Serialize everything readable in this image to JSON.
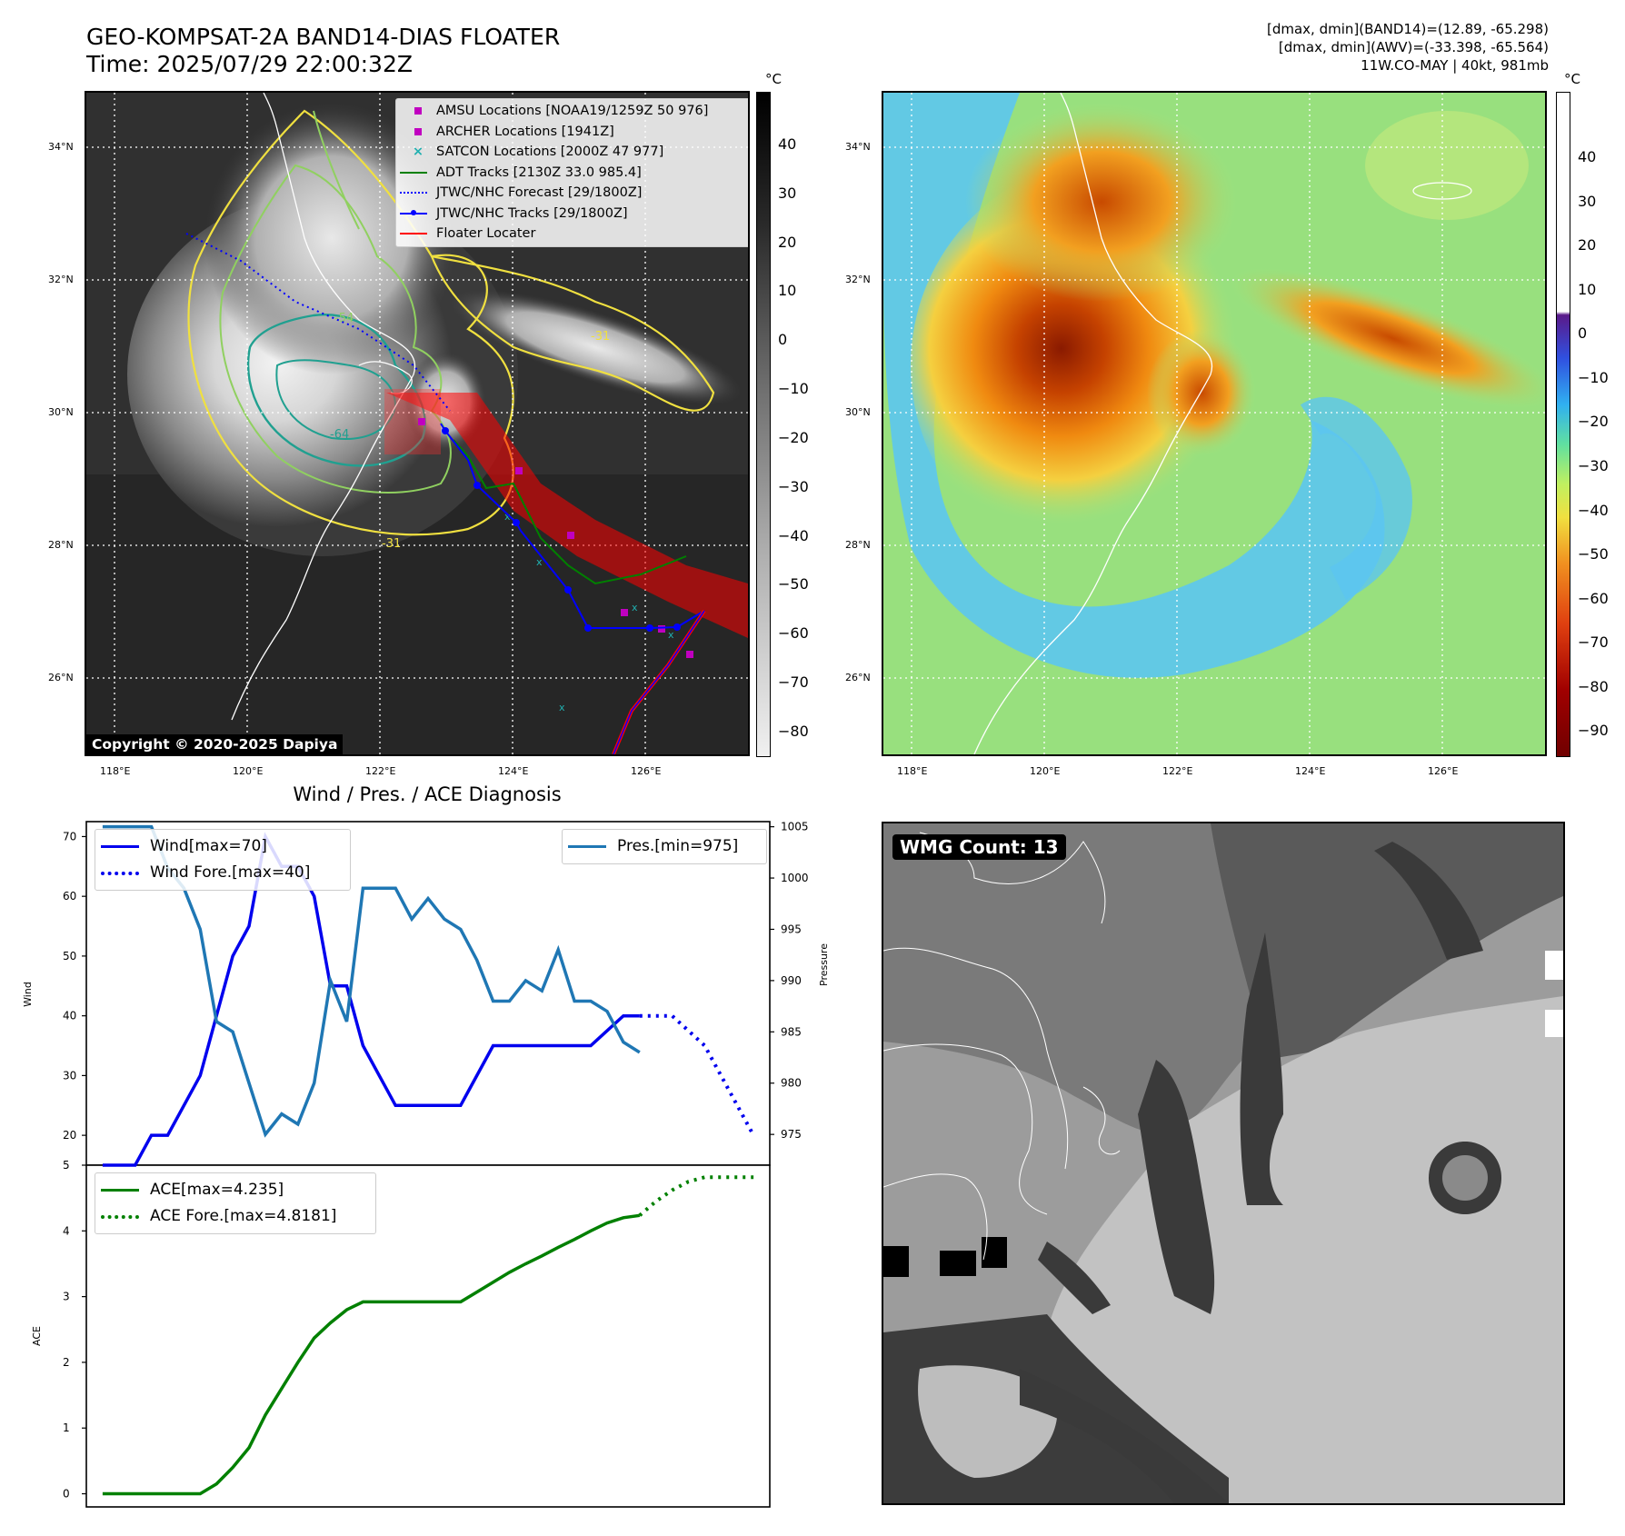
{
  "header": {
    "title_line1": "GEO-KOMPSAT-2A BAND14-DIAS FLOATER",
    "title_line2": "Time: 2025/07/29 22:00:32Z",
    "stats_line1": "[dmax, dmin](BAND14)=(12.89, -65.298)",
    "stats_line2": "[dmax, dmin](AWV)=(-33.398, -65.564)",
    "stats_line3": "11W.CO-MAY | 40kt, 981mb"
  },
  "ir_panel": {
    "copyright": "Copyright © 2020-2025 Dapiya",
    "lat_labels": [
      "34°N",
      "32°N",
      "30°N",
      "28°N",
      "26°N"
    ],
    "lon_labels": [
      "118°E",
      "120°E",
      "122°E",
      "124°E",
      "126°E"
    ],
    "contour_labels": [
      "-54",
      "-31",
      "-64",
      "-31"
    ],
    "colorbar": {
      "unit": "°C",
      "ticks": [
        "40",
        "30",
        "20",
        "10",
        "0",
        "−10",
        "−20",
        "−30",
        "−40",
        "−50",
        "−60",
        "−70",
        "−80"
      ]
    },
    "legend": [
      {
        "label": "AMSU Locations [NOAA19/1259Z 50 976]",
        "marker": "square",
        "color": "#c000c0"
      },
      {
        "label": "ARCHER Locations [1941Z]",
        "marker": "square",
        "color": "#c000c0"
      },
      {
        "label": "SATCON Locations [2000Z 47 977]",
        "marker": "x",
        "color": "#20b0b0"
      },
      {
        "label": "ADT Tracks [2130Z 33.0 985.4]",
        "marker": "line",
        "color": "#008000"
      },
      {
        "label": "JTWC/NHC Forecast [29/1800Z]",
        "marker": "dotted",
        "color": "#0000ff"
      },
      {
        "label": "JTWC/NHC Tracks [29/1800Z]",
        "marker": "line-dot",
        "color": "#0000ff"
      },
      {
        "label": "Floater Locater",
        "marker": "line",
        "color": "#ff0000"
      }
    ]
  },
  "wv_panel": {
    "lat_labels": [
      "34°N",
      "32°N",
      "30°N",
      "28°N",
      "26°N"
    ],
    "lon_labels": [
      "118°E",
      "120°E",
      "122°E",
      "124°E",
      "126°E"
    ],
    "colorbar": {
      "unit": "°C",
      "ticks": [
        "40",
        "30",
        "20",
        "10",
        "0",
        "−10",
        "−20",
        "−30",
        "−40",
        "−50",
        "−60",
        "−70",
        "−80",
        "−90"
      ]
    }
  },
  "diagnosis": {
    "title": "Wind / Pres. / ACE Diagnosis",
    "wind_axis_label": "Wind",
    "pressure_axis_label": "Pressure",
    "ace_axis_label": "ACE",
    "legend_wind": "Wind[max=70]",
    "legend_wind_fore": "Wind Fore.[max=40]",
    "legend_pres": "Pres.[min=975]",
    "legend_ace": "ACE[max=4.235]",
    "legend_ace_fore": "ACE Fore.[max=4.8181]"
  },
  "wmg_panel": {
    "badge": "WMG Count: 13"
  },
  "colors": {
    "wind": "#0000ee",
    "pressure": "#1f77b4",
    "ace": "#008000",
    "track": "#0000ff",
    "floater": "#ff0000",
    "contour_yellow": "#f0e040",
    "contour_green": "#90d060",
    "contour_teal": "#20a090"
  },
  "chart_data": [
    {
      "type": "line",
      "name": "wind-pressure",
      "x": [
        0,
        1,
        2,
        3,
        4,
        5,
        6,
        7,
        8,
        9,
        10,
        11,
        12,
        13,
        14,
        15,
        16,
        17,
        18,
        19,
        20,
        21,
        22,
        23,
        24,
        25,
        26,
        27,
        28,
        29,
        30,
        31,
        32,
        33,
        34,
        35,
        36,
        37
      ],
      "xlim": [
        -1,
        41
      ],
      "ylim": [
        15,
        72.5
      ],
      "y2lim": [
        972,
        1005.5
      ],
      "yticks": [
        20,
        30,
        40,
        50,
        60,
        70
      ],
      "y2ticks": [
        975,
        980,
        985,
        990,
        995,
        1000,
        1005
      ],
      "series": [
        {
          "name": "Wind[max=70]",
          "axis": "left",
          "style": "solid",
          "x": [
            0,
            2,
            3,
            4,
            6,
            8,
            9,
            10,
            11,
            12,
            13,
            14,
            15,
            16,
            17,
            18,
            20,
            22,
            24,
            26,
            28,
            30,
            32,
            33
          ],
          "values": [
            15,
            15,
            20,
            20,
            30,
            50,
            55,
            70,
            65,
            65,
            60,
            45,
            45,
            35,
            30,
            25,
            25,
            25,
            35,
            35,
            35,
            35,
            40,
            40
          ]
        },
        {
          "name": "Wind Fore.[max=40]",
          "axis": "left",
          "style": "dotted",
          "x": [
            33,
            35,
            37,
            38,
            39,
            40
          ],
          "values": [
            40,
            40,
            35,
            30,
            25,
            20
          ]
        },
        {
          "name": "Pres.[min=975]",
          "axis": "right",
          "style": "solid",
          "x": [
            0,
            3,
            4,
            5,
            6,
            7,
            8,
            9,
            10,
            11,
            12,
            13,
            14,
            15,
            16,
            17,
            18,
            19,
            20,
            21,
            22,
            23,
            24,
            25,
            26,
            27,
            28,
            29,
            30,
            31,
            32,
            33
          ],
          "values": [
            1005,
            1005,
            1001,
            999,
            995,
            986,
            985,
            980,
            975,
            977,
            976,
            980,
            990,
            986,
            999,
            999,
            999,
            996,
            998,
            996,
            995,
            992,
            988,
            988,
            990,
            989,
            993,
            988,
            988,
            987,
            984,
            983
          ]
        }
      ]
    },
    {
      "type": "line",
      "name": "ace",
      "xlim": [
        -1,
        41
      ],
      "ylim": [
        -0.2,
        5
      ],
      "yticks": [
        0,
        1,
        2,
        3,
        4,
        5
      ],
      "series": [
        {
          "name": "ACE[max=4.235]",
          "style": "solid",
          "x": [
            0,
            6,
            7,
            8,
            9,
            10,
            11,
            12,
            13,
            14,
            15,
            16,
            17,
            18,
            19,
            20,
            21,
            22,
            23,
            24,
            25,
            26,
            27,
            28,
            29,
            30,
            31,
            32,
            33
          ],
          "values": [
            0,
            0,
            0.15,
            0.4,
            0.7,
            1.2,
            1.6,
            2.0,
            2.37,
            2.6,
            2.8,
            2.92,
            2.92,
            2.92,
            2.92,
            2.92,
            2.92,
            2.92,
            3.07,
            3.22,
            3.37,
            3.5,
            3.62,
            3.75,
            3.87,
            4.0,
            4.12,
            4.2,
            4.235
          ]
        },
        {
          "name": "ACE Fore.[max=4.8181]",
          "style": "dotted",
          "x": [
            33,
            34,
            35,
            36,
            37,
            38,
            39,
            40
          ],
          "values": [
            4.235,
            4.45,
            4.62,
            4.75,
            4.8181,
            4.8181,
            4.8181,
            4.8181
          ]
        }
      ]
    }
  ]
}
